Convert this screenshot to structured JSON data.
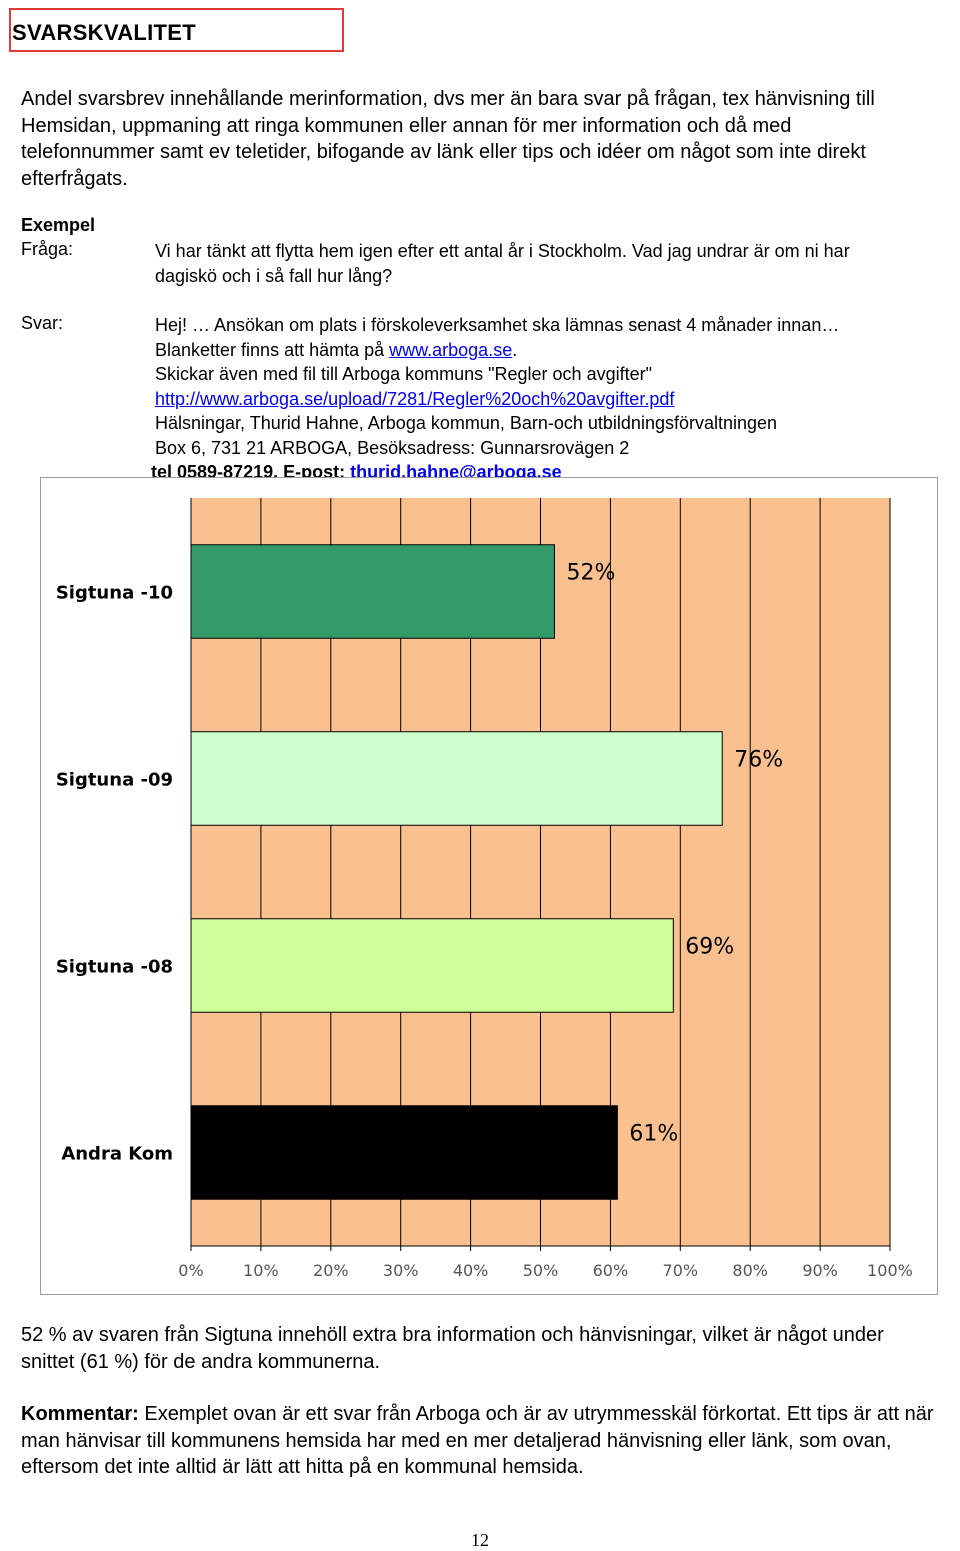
{
  "title": "SVARSKVALITET",
  "intro": "Andel svarsbrev innehållande merinformation, dvs mer än bara svar på frågan, tex hänvisning till Hemsidan, uppmaning att ringa kommunen eller annan för mer information och då med telefonnummer samt ev teletider, bifogande av länk eller tips och idéer om något som inte direkt efterfrågats.",
  "example": {
    "heading": "Exempel",
    "question_label": "Fråga:",
    "question_line1": "Vi har tänkt att flytta hem igen efter ett antal år i Stockholm. Vad jag undrar är om ni har",
    "question_line2": "dagiskö och i så fall hur lång?",
    "answer_label": "Svar:",
    "answer_line1": "Hej! … Ansökan om plats i förskoleverksamhet ska lämnas senast 4 månader innan…",
    "answer_line2_text": "Blanketter finns att hämta på ",
    "answer_line2_link": "www.arboga.se",
    "answer_line2_end": ".",
    "answer_line3": "Skickar även med fil till Arboga kommuns \"Regler och avgifter\"",
    "answer_line4_link": "http://www.arboga.se/upload/7281/Regler%20och%20avgifter.pdf",
    "answer_line5": "Hälsningar, Thurid Hahne, Arboga kommun, Barn-och utbildningsförvaltningen",
    "answer_line6": "Box 6, 731 21  ARBOGA, Besöksadress: Gunnarsrovägen 2",
    "answer_line7_text": "tel 0589-87219, E-post: ",
    "answer_line7_link": "thurid.hahne@arboga.se"
  },
  "chart_data": {
    "type": "bar",
    "orientation": "horizontal",
    "categories": [
      "Sigtuna -10",
      "Sigtuna -09",
      "Sigtuna -08",
      "Andra Kom"
    ],
    "values": [
      52,
      76,
      69,
      61
    ],
    "value_labels": [
      "52%",
      "76%",
      "69%",
      "61%"
    ],
    "bar_colors": [
      "#339966",
      "#ccffcc",
      "#ccff99",
      "#000000"
    ],
    "plot_background": "#fac090",
    "xlim": [
      0,
      100
    ],
    "x_ticks": [
      0,
      10,
      20,
      30,
      40,
      50,
      60,
      70,
      80,
      90,
      100
    ],
    "x_tick_labels": [
      "0%",
      "10%",
      "20%",
      "30%",
      "40%",
      "50%",
      "60%",
      "70%",
      "80%",
      "90%",
      "100%"
    ],
    "grid": true,
    "title": "",
    "xlabel": "",
    "ylabel": ""
  },
  "summary": "52 % av svaren från Sigtuna innehöll extra bra information och hänvisningar, vilket är något under snittet (61 %) för de andra kommunerna.",
  "comment": {
    "label": "Kommentar:",
    "text": " Exemplet ovan är ett svar från Arboga och är av utrymmesskäl förkortat. Ett tips är att när man hänvisar till kommunens hemsida har med en mer detaljerad hänvisning eller länk, som ovan, eftersom det inte alltid är lätt att hitta på en kommunal hemsida."
  },
  "page_number": "12"
}
